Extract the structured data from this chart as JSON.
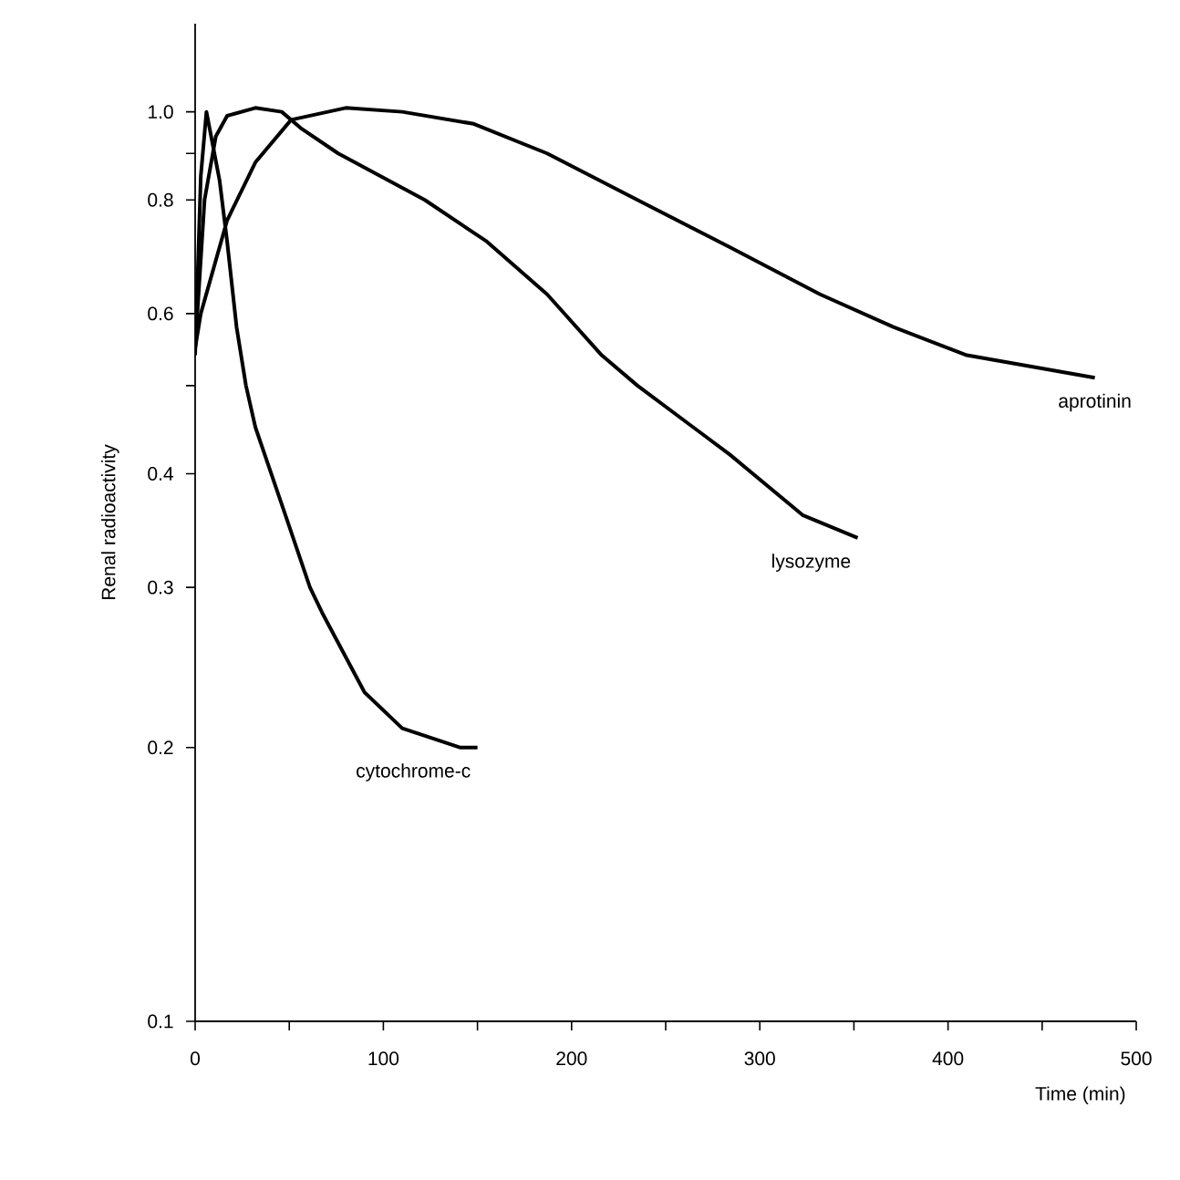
{
  "chart_data": {
    "type": "line",
    "xlabel": "Time (min)",
    "ylabel": "Renal radioactivity",
    "log": "y",
    "grid": false,
    "legend": false,
    "marker": "none",
    "line_style": "solid",
    "xlim": [
      0,
      500
    ],
    "ylim": [
      0.1,
      1.25
    ],
    "xticks": [
      0,
      {
        "value": 50,
        "label": null
      },
      100,
      {
        "value": 150,
        "label": null
      },
      200,
      {
        "value": 250,
        "label": null
      },
      300,
      {
        "value": 350,
        "label": null
      },
      400,
      {
        "value": 450,
        "label": null
      },
      500
    ],
    "yticks": [
      0.1,
      0.2,
      0.3,
      0.4,
      {
        "value": 0.5,
        "label": null
      },
      0.6,
      0.8,
      {
        "value": 0.9,
        "label": null
      },
      {
        "value": 1,
        "label": "1.0"
      }
    ],
    "series": [
      {
        "name": "cytochrome-c",
        "color": "#000000",
        "x": [
          0,
          3,
          6,
          13,
          17,
          22,
          27,
          32,
          48,
          61,
          68,
          90,
          110,
          141,
          150
        ],
        "values": [
          0.54,
          0.85,
          1.0,
          0.84,
          0.72,
          0.58,
          0.5,
          0.45,
          0.36,
          0.3,
          0.28,
          0.23,
          0.21,
          0.2,
          0.2
        ]
      },
      {
        "name": "lysozyme",
        "color": "#000000",
        "x": [
          0,
          5,
          11,
          17,
          32,
          46,
          56,
          76,
          122,
          155,
          187,
          216,
          235,
          284,
          323,
          352
        ],
        "values": [
          0.55,
          0.8,
          0.94,
          0.99,
          1.01,
          1.0,
          0.96,
          0.9,
          0.8,
          0.72,
          0.63,
          0.54,
          0.5,
          0.42,
          0.36,
          0.34
        ]
      },
      {
        "name": "aprotinin",
        "color": "#000000",
        "x": [
          0,
          3,
          17,
          32,
          51,
          80,
          110,
          148,
          187,
          235,
          284,
          332,
          371,
          410,
          478
        ],
        "values": [
          0.55,
          0.6,
          0.76,
          0.88,
          0.98,
          1.01,
          1.0,
          0.97,
          0.9,
          0.8,
          0.71,
          0.63,
          0.58,
          0.54,
          0.51
        ]
      }
    ]
  }
}
